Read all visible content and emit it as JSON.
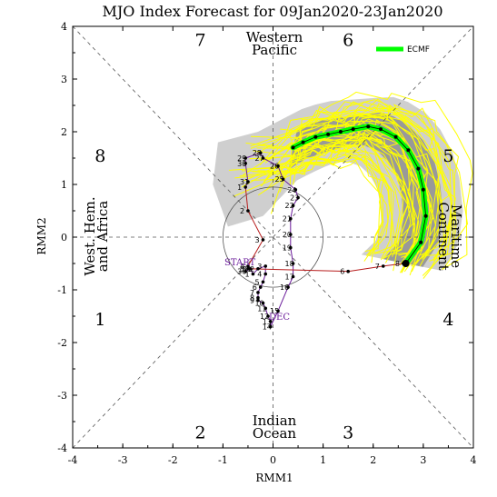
{
  "chart_data": {
    "type": "scatter",
    "title": "MJO Index Forecast for 09Jan2020-23Jan2020",
    "xlabel": "RMM1",
    "ylabel": "RMM2",
    "xlim": [
      -4,
      4
    ],
    "ylim": [
      -4,
      4
    ],
    "x_ticks": [
      "-4",
      "-3",
      "-2",
      "-1",
      "0",
      "1",
      "2",
      "3",
      "4"
    ],
    "y_ticks": [
      "-4",
      "-3",
      "-2",
      "-1",
      "0",
      "1",
      "2",
      "3",
      "4"
    ],
    "phase_labels": [
      {
        "label": "1",
        "x": -3.45,
        "y": -1.55
      },
      {
        "label": "2",
        "x": -1.45,
        "y": -3.7
      },
      {
        "label": "3",
        "x": 1.5,
        "y": -3.7
      },
      {
        "label": "4",
        "x": 3.5,
        "y": -1.55
      },
      {
        "label": "5",
        "x": 3.5,
        "y": 1.55
      },
      {
        "label": "6",
        "x": 1.5,
        "y": 3.75
      },
      {
        "label": "7",
        "x": -1.45,
        "y": 3.75
      },
      {
        "label": "8",
        "x": -3.45,
        "y": 1.55
      }
    ],
    "regions": {
      "top": [
        "Western",
        "Pacific"
      ],
      "bottom": [
        "Indian",
        "Ocean"
      ],
      "left": [
        "West. Hem.",
        "and Africa"
      ],
      "right": [
        "Maritime",
        "Continent"
      ]
    },
    "markers": {
      "start": "START",
      "dec": "DEC"
    },
    "legend": {
      "label": "ECMF",
      "color": "#00ff00",
      "position": "top-right"
    },
    "observed": {
      "name": "observed",
      "days": [
        "30",
        "31",
        "1",
        "2",
        "3",
        "4",
        "5",
        "6",
        "7",
        "8",
        "9",
        "10",
        "11",
        "12",
        "13",
        "14",
        "15",
        "16",
        "17",
        "18",
        "19",
        "20",
        "21",
        "22",
        "23",
        "24",
        "25",
        "26",
        "27",
        "28",
        "29",
        "30",
        "31",
        "1",
        "2",
        "3",
        "4",
        "5",
        "6",
        "7",
        "8"
      ],
      "x": [
        -0.55,
        -0.45,
        -0.4,
        -0.3,
        -0.15,
        -0.15,
        -0.2,
        -0.25,
        -0.3,
        -0.3,
        -0.3,
        -0.2,
        -0.15,
        -0.1,
        -0.05,
        -0.05,
        0.1,
        0.3,
        0.4,
        0.4,
        0.35,
        0.35,
        0.35,
        0.4,
        0.5,
        0.45,
        0.2,
        0.1,
        -0.2,
        -0.25,
        -0.55,
        -0.55,
        -0.5,
        -0.55,
        -0.5,
        -0.2,
        -0.5,
        -0.5,
        1.5,
        2.2,
        2.6
      ],
      "y": [
        -0.65,
        -0.6,
        -0.7,
        -0.6,
        -0.55,
        -0.7,
        -0.85,
        -0.95,
        -1.05,
        -1.15,
        -1.2,
        -1.25,
        -1.35,
        -1.5,
        -1.6,
        -1.7,
        -1.4,
        -0.95,
        -0.75,
        -0.5,
        -0.2,
        0.05,
        0.35,
        0.6,
        0.75,
        0.9,
        1.1,
        1.35,
        1.5,
        1.6,
        1.5,
        1.4,
        1.05,
        0.95,
        0.5,
        -0.05,
        -0.55,
        -0.6,
        -0.65,
        -0.55,
        -0.5
      ]
    },
    "forecast_mean": {
      "name": "ECMF",
      "x": [
        2.65,
        2.95,
        3.05,
        3.0,
        2.9,
        2.7,
        2.45,
        2.15,
        1.9,
        1.6,
        1.35,
        1.1,
        0.85,
        0.6,
        0.4
      ],
      "y": [
        -0.5,
        -0.1,
        0.4,
        0.9,
        1.3,
        1.65,
        1.9,
        2.05,
        2.1,
        2.05,
        2.0,
        1.95,
        1.9,
        1.8,
        1.7
      ]
    },
    "grid": "diagonal phase dividers and zero lines"
  }
}
